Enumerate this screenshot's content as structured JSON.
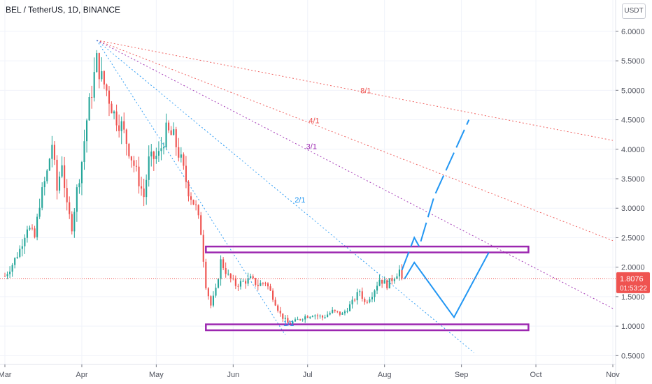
{
  "header": {
    "title": "BEL / TetherUS, 1D, BINANCE",
    "currency": "USDT"
  },
  "colors": {
    "up": "#26a69a",
    "down": "#ef5350",
    "fan_8_1": "#ef5350",
    "fan_4_1": "#ef5350",
    "fan_3_1": "#9c27b0",
    "fan_2_1": "#2196f3",
    "fan_1_1": "#2196f3",
    "box": "#9c27b0",
    "projection": "#2196f3",
    "price_label_bg": "#ef5350"
  },
  "chart_data": {
    "type": "candlestick",
    "symbol": "BEL / TetherUS",
    "interval": "1D",
    "exchange": "BINANCE",
    "ylim": [
      0.35,
      6.2
    ],
    "yticks": [
      "6.0000",
      "5.5000",
      "5.0000",
      "4.5000",
      "4.0000",
      "3.5000",
      "3.0000",
      "2.5000",
      "2.0000",
      "1.5000",
      "1.0000",
      "0.5000"
    ],
    "ytick_values": [
      6.0,
      5.5,
      5.0,
      4.5,
      4.0,
      3.5,
      3.0,
      2.5,
      2.0,
      1.5,
      1.0,
      0.5
    ],
    "xlim": [
      "2021-03-01",
      "2021-11-01"
    ],
    "xticks": [
      {
        "label": "Mar",
        "date": "2021-03-01"
      },
      {
        "label": "Apr",
        "date": "2021-04-01"
      },
      {
        "label": "May",
        "date": "2021-05-01"
      },
      {
        "label": "Jun",
        "date": "2021-06-01"
      },
      {
        "label": "Jul",
        "date": "2021-07-01"
      },
      {
        "label": "Aug",
        "date": "2021-08-01"
      },
      {
        "label": "Sep",
        "date": "2021-09-01"
      },
      {
        "label": "Oct",
        "date": "2021-10-01"
      },
      {
        "label": "Nov",
        "date": "2021-11-01"
      }
    ],
    "last_price": "1.8076",
    "countdown": "01:53:22",
    "close_path": [
      [
        "2021-03-01",
        1.85
      ],
      [
        "2021-03-04",
        2.05
      ],
      [
        "2021-03-07",
        2.3
      ],
      [
        "2021-03-10",
        2.7
      ],
      [
        "2021-03-13",
        2.5
      ],
      [
        "2021-03-15",
        3.1
      ],
      [
        "2021-03-18",
        3.6
      ],
      [
        "2021-03-20",
        4.1
      ],
      [
        "2021-03-22",
        3.3
      ],
      [
        "2021-03-24",
        3.8
      ],
      [
        "2021-03-26",
        3.0
      ],
      [
        "2021-03-28",
        2.7
      ],
      [
        "2021-03-30",
        3.3
      ],
      [
        "2021-04-01",
        3.8
      ],
      [
        "2021-04-03",
        4.5
      ],
      [
        "2021-04-05",
        5.0
      ],
      [
        "2021-04-07",
        5.5
      ],
      [
        "2021-04-09",
        5.2
      ],
      [
        "2021-04-11",
        5.0
      ],
      [
        "2021-04-14",
        4.6
      ],
      [
        "2021-04-17",
        4.4
      ],
      [
        "2021-04-20",
        4.0
      ],
      [
        "2021-04-23",
        3.6
      ],
      [
        "2021-04-26",
        3.2
      ],
      [
        "2021-04-28",
        3.8
      ],
      [
        "2021-05-02",
        3.9
      ],
      [
        "2021-05-05",
        4.3
      ],
      [
        "2021-05-08",
        4.2
      ],
      [
        "2021-05-11",
        3.8
      ],
      [
        "2021-05-14",
        3.3
      ],
      [
        "2021-05-17",
        3.0
      ],
      [
        "2021-05-19",
        2.6
      ],
      [
        "2021-05-21",
        1.7
      ],
      [
        "2021-05-23",
        1.35
      ],
      [
        "2021-05-25",
        1.6
      ],
      [
        "2021-05-27",
        2.1
      ],
      [
        "2021-05-30",
        1.85
      ],
      [
        "2021-06-02",
        1.7
      ],
      [
        "2021-06-05",
        1.75
      ],
      [
        "2021-06-08",
        1.8
      ],
      [
        "2021-06-11",
        1.7
      ],
      [
        "2021-06-14",
        1.75
      ],
      [
        "2021-06-17",
        1.5
      ],
      [
        "2021-06-20",
        1.2
      ],
      [
        "2021-06-23",
        1.05
      ],
      [
        "2021-06-26",
        1.08
      ],
      [
        "2021-06-29",
        1.15
      ],
      [
        "2021-07-03",
        1.2
      ],
      [
        "2021-07-07",
        1.15
      ],
      [
        "2021-07-11",
        1.25
      ],
      [
        "2021-07-15",
        1.2
      ],
      [
        "2021-07-19",
        1.4
      ],
      [
        "2021-07-22",
        1.6
      ],
      [
        "2021-07-24",
        1.4
      ],
      [
        "2021-07-27",
        1.55
      ],
      [
        "2021-07-30",
        1.8
      ],
      [
        "2021-08-02",
        1.7
      ],
      [
        "2021-08-05",
        1.85
      ],
      [
        "2021-08-07",
        1.95
      ],
      [
        "2021-08-08",
        1.8076
      ]
    ],
    "gann_fan": {
      "origin": {
        "date": "2021-04-07",
        "price": 5.85
      },
      "lines": [
        {
          "label": "8/1",
          "end": {
            "date": "2021-11-01",
            "price": 4.15
          },
          "color_key": "fan_8_1"
        },
        {
          "label": "4/1",
          "end": {
            "date": "2021-11-01",
            "price": 2.45
          },
          "color_key": "fan_4_1"
        },
        {
          "label": "3/1",
          "end": {
            "date": "2021-11-01",
            "price": 1.3
          },
          "color_key": "fan_3_1"
        },
        {
          "label": "2/1",
          "end": {
            "date": "2021-09-06",
            "price": 0.55
          },
          "color_key": "fan_2_1"
        },
        {
          "label": "1/1",
          "end": {
            "date": "2021-06-22",
            "price": 0.85
          },
          "color_key": "fan_1_1"
        }
      ]
    },
    "zones": [
      {
        "name": "resistance",
        "from": "2021-05-21",
        "to": "2021-09-28",
        "top": 2.35,
        "bottom": 2.25
      },
      {
        "name": "support",
        "from": "2021-05-21",
        "to": "2021-09-28",
        "top": 1.03,
        "bottom": 0.93
      }
    ],
    "projections": [
      {
        "name": "bullish-path",
        "dashed": true,
        "points": [
          [
            "2021-08-08",
            1.95
          ],
          [
            "2021-08-13",
            2.5
          ],
          [
            "2021-08-15",
            2.35
          ],
          [
            "2021-08-21",
            3.2
          ],
          [
            "2021-09-04",
            4.5
          ]
        ]
      },
      {
        "name": "corrective-path",
        "dashed": false,
        "points": [
          [
            "2021-08-09",
            1.8
          ],
          [
            "2021-08-13",
            2.08
          ],
          [
            "2021-08-29",
            1.15
          ],
          [
            "2021-09-12",
            2.25
          ]
        ]
      }
    ]
  }
}
